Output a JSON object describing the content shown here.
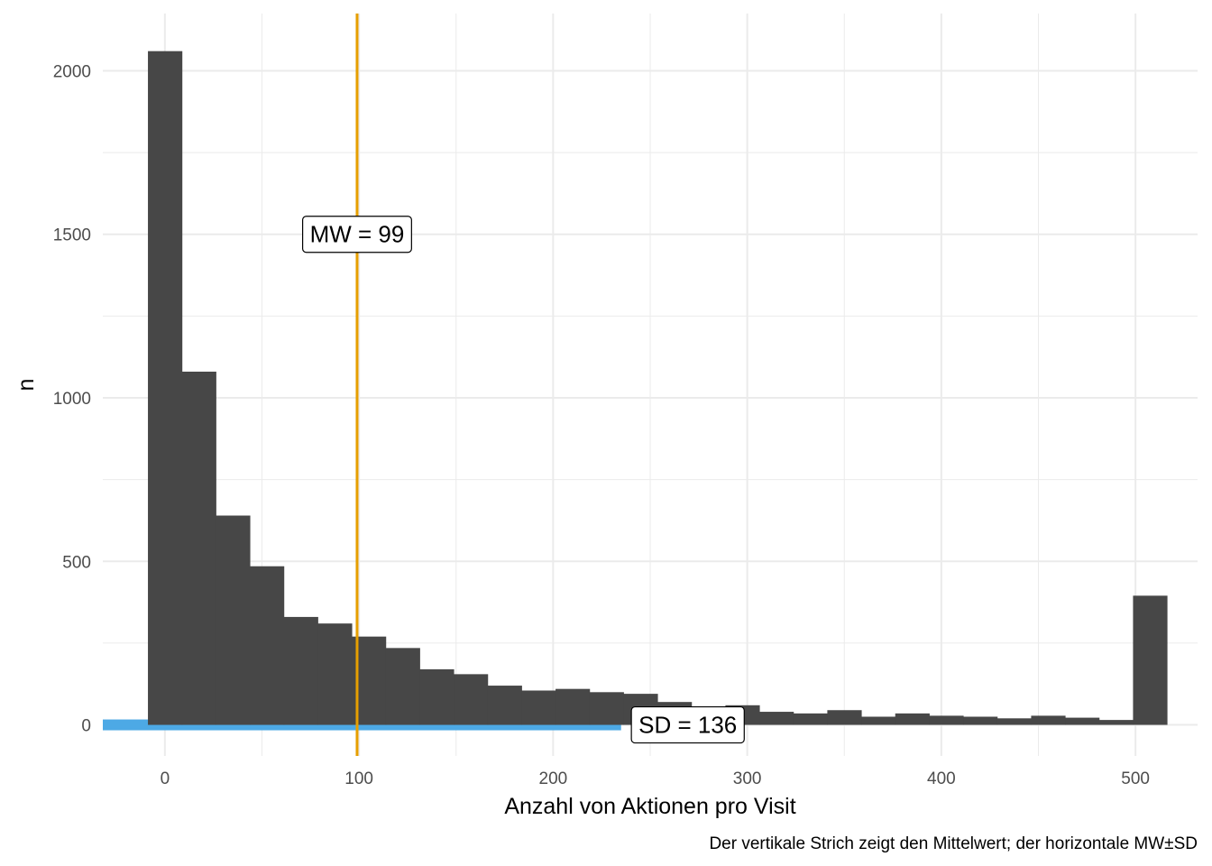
{
  "chart_data": {
    "type": "bar",
    "bin_width": 17.5,
    "bins": [
      {
        "x": 0,
        "n": 2060
      },
      {
        "x": 17.5,
        "n": 1080
      },
      {
        "x": 35,
        "n": 640
      },
      {
        "x": 52.5,
        "n": 485
      },
      {
        "x": 70,
        "n": 330
      },
      {
        "x": 87.5,
        "n": 310
      },
      {
        "x": 105,
        "n": 270
      },
      {
        "x": 122.5,
        "n": 235
      },
      {
        "x": 140,
        "n": 170
      },
      {
        "x": 157.5,
        "n": 155
      },
      {
        "x": 175,
        "n": 120
      },
      {
        "x": 192.5,
        "n": 105
      },
      {
        "x": 210,
        "n": 110
      },
      {
        "x": 227.5,
        "n": 100
      },
      {
        "x": 245,
        "n": 95
      },
      {
        "x": 262.5,
        "n": 70
      },
      {
        "x": 280,
        "n": 55
      },
      {
        "x": 297.5,
        "n": 60
      },
      {
        "x": 315,
        "n": 40
      },
      {
        "x": 332.5,
        "n": 35
      },
      {
        "x": 350,
        "n": 45
      },
      {
        "x": 367.5,
        "n": 25
      },
      {
        "x": 385,
        "n": 35
      },
      {
        "x": 402.5,
        "n": 28
      },
      {
        "x": 420,
        "n": 25
      },
      {
        "x": 437.5,
        "n": 20
      },
      {
        "x": 455,
        "n": 28
      },
      {
        "x": 472.5,
        "n": 22
      },
      {
        "x": 490,
        "n": 15
      },
      {
        "x": 507.5,
        "n": 395
      }
    ],
    "mean": 99,
    "sd": 136,
    "xlabel": "Anzahl von Aktionen pro Visit",
    "ylabel": "n",
    "caption": "Der vertikale Strich zeigt den Mittelwert; der horizontale MW±SD",
    "x_ticks": [
      0,
      100,
      200,
      300,
      400,
      500
    ],
    "y_ticks": [
      0,
      500,
      1000,
      1500,
      2000
    ],
    "xlim": [
      -32,
      532
    ],
    "ylim": [
      -95,
      2175
    ],
    "grid": true,
    "colors": {
      "bars": "#474747",
      "mean_line": "#E69F00",
      "sd_bar": "#4DA9E5",
      "grid": "#EBEBEB"
    },
    "annotations": {
      "mean_label": "MW = 99",
      "sd_label": "SD = 136"
    }
  }
}
